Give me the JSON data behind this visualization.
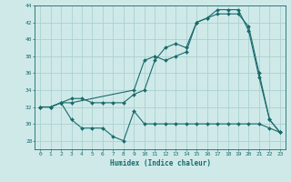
{
  "xlabel": "Humidex (Indice chaleur)",
  "background_color": "#cfe9e9",
  "grid_color": "#aad0d0",
  "line_color": "#1a6b6b",
  "xlim": [
    -0.5,
    23.5
  ],
  "ylim": [
    27,
    44
  ],
  "yticks": [
    28,
    30,
    32,
    34,
    36,
    38,
    40,
    42,
    44
  ],
  "xticks": [
    0,
    1,
    2,
    3,
    4,
    5,
    6,
    7,
    8,
    9,
    10,
    11,
    12,
    13,
    14,
    15,
    16,
    17,
    18,
    19,
    20,
    21,
    22,
    23
  ],
  "line1_x": [
    0,
    1,
    2,
    3,
    4,
    5,
    6,
    7,
    8,
    9,
    10,
    11,
    12,
    13,
    14,
    15,
    16,
    17,
    18,
    19,
    20,
    21,
    22,
    23
  ],
  "line1_y": [
    32,
    32,
    32.5,
    30.5,
    29.5,
    29.5,
    29.5,
    28.5,
    28,
    31.5,
    30,
    30,
    30,
    30,
    30,
    30,
    30,
    30,
    30,
    30,
    30,
    30,
    29.5,
    29
  ],
  "line2_x": [
    0,
    1,
    2,
    3,
    9,
    10,
    11,
    12,
    13,
    14,
    15,
    16,
    17,
    18,
    19,
    20,
    21,
    22,
    23
  ],
  "line2_y": [
    32,
    32,
    32.5,
    32.5,
    34,
    37.5,
    38,
    37.5,
    38,
    38.5,
    42,
    42.5,
    43.5,
    43.5,
    43.5,
    41,
    35.5,
    30.5,
    29
  ],
  "line3_x": [
    0,
    1,
    2,
    3,
    4,
    5,
    6,
    7,
    8,
    9,
    10,
    11,
    12,
    13,
    14,
    15,
    16,
    17,
    18,
    19,
    20,
    21,
    22,
    23
  ],
  "line3_y": [
    32,
    32,
    32.5,
    33,
    33,
    32.5,
    32.5,
    32.5,
    32.5,
    33.5,
    34,
    37.5,
    39,
    39.5,
    39,
    42,
    42.5,
    43,
    43,
    43,
    41.5,
    36,
    30.5,
    29
  ]
}
